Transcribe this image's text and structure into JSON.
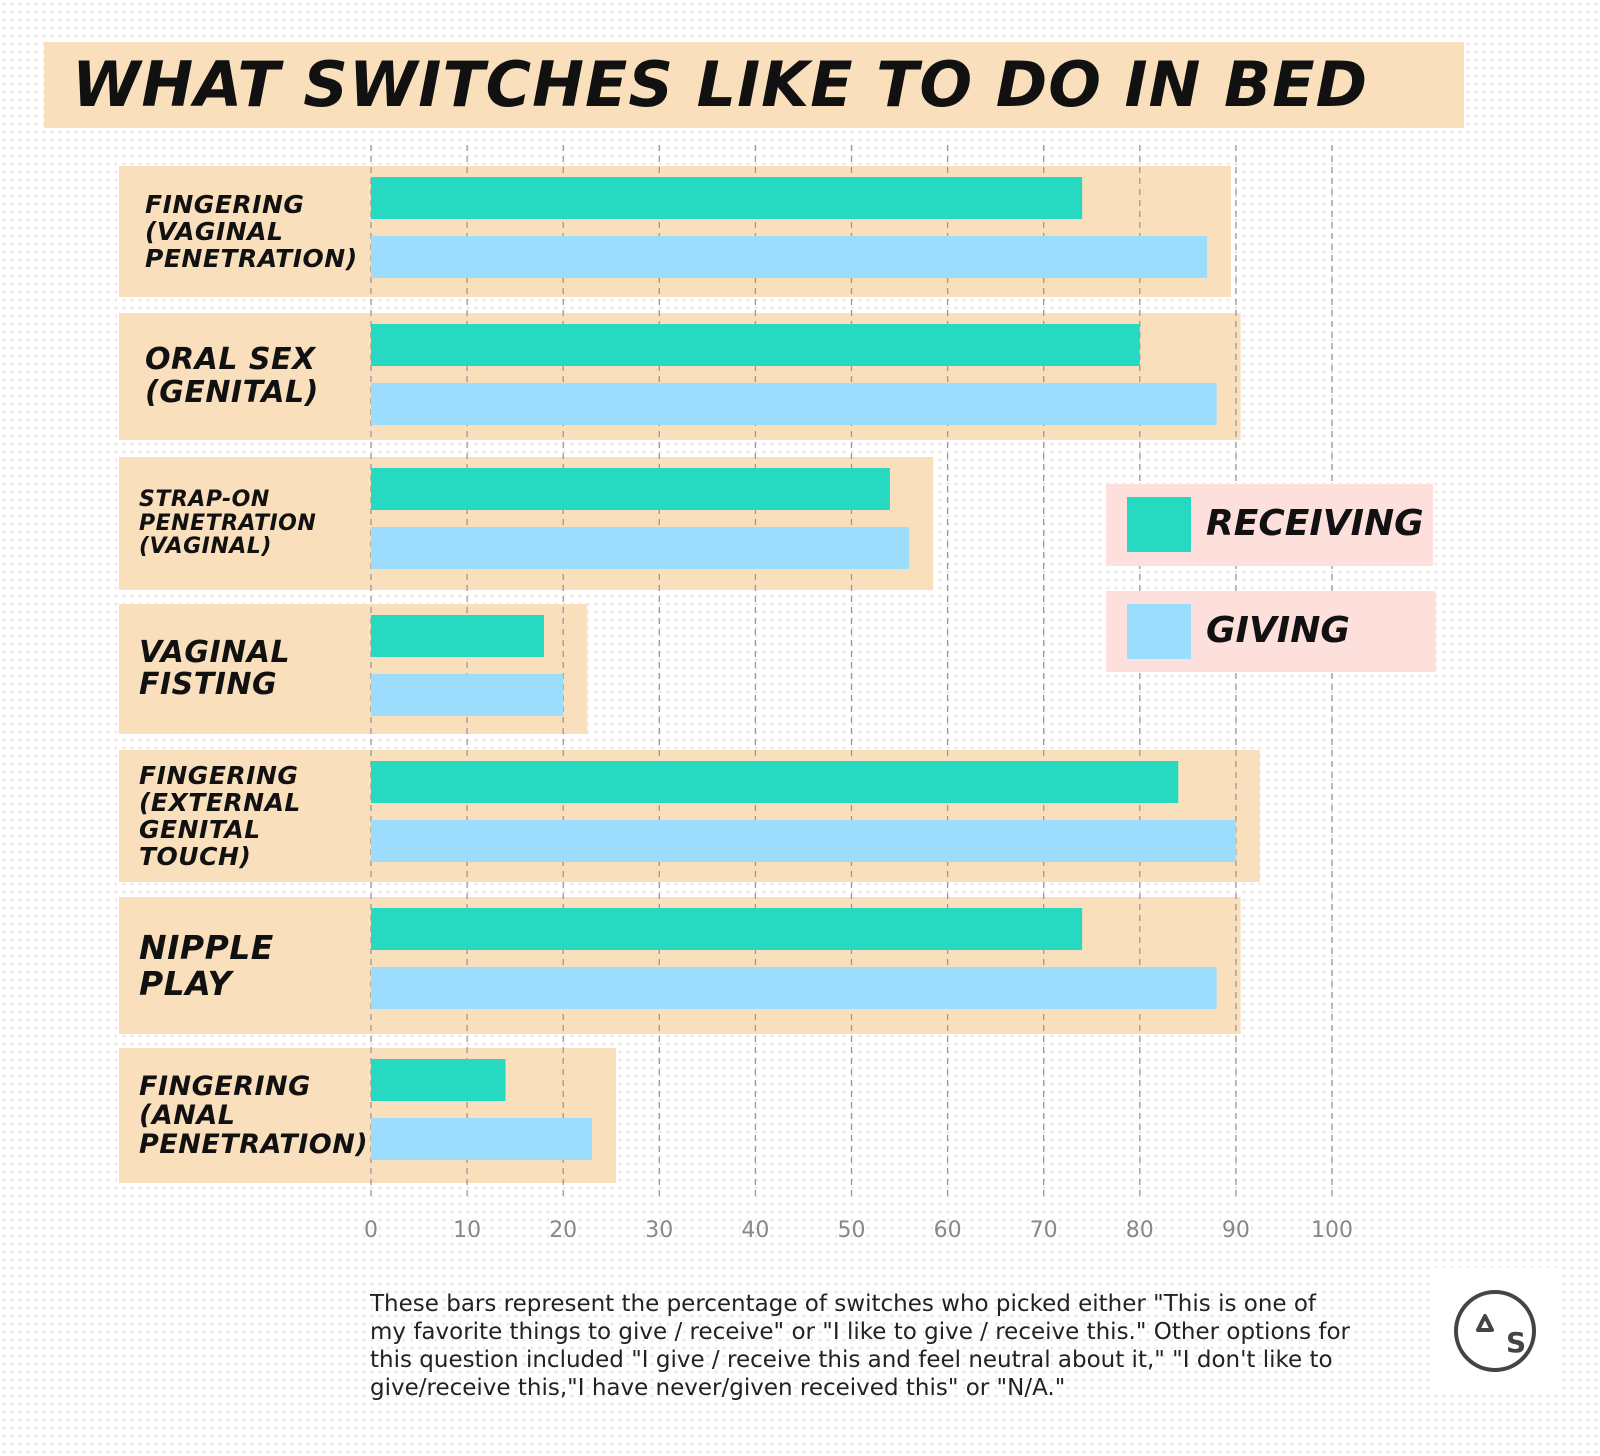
{
  "chart_data": {
    "type": "bar",
    "orientation": "horizontal",
    "title": "WHAT SWITCHES LIKE TO DO IN BED",
    "categories": [
      "FINGERING\n(VAGINAL\nPENETRATION)",
      "ORAL SEX\n(GENITAL)",
      "STRAP-ON\nPENETRATION\n(VAGINAL)",
      "VAGINAL\nFISTING",
      "FINGERING\n(EXTERNAL\nGENITAL\nTOUCH)",
      "NIPPLE\nPLAY",
      "FINGERING\n(ANAL\nPENETRATION)"
    ],
    "series": [
      {
        "name": "RECEIVING",
        "color": "#26d9c1",
        "values": [
          74,
          80,
          54,
          18,
          84,
          74,
          14
        ]
      },
      {
        "name": "GIVING",
        "color": "#9cdcfc",
        "values": [
          87,
          88,
          56,
          20,
          90,
          88,
          23
        ]
      }
    ],
    "xlim": [
      0,
      100
    ],
    "xticks": [
      "0",
      "10",
      "20",
      "30",
      "40",
      "50",
      "60",
      "70",
      "80",
      "90",
      "100"
    ],
    "grid": true,
    "legend_position": "right",
    "colors": {
      "band": "#f9dfbb",
      "legend_band": "#fde0dc",
      "grid": "#999999"
    }
  },
  "footnote": "These bars represent the percentage of switches who picked either \"This is one of my favorite things to give / receive\" or \"I like to give / receive this.\" Other options for this question included \"I give / receive this and feel neutral about it,\" \"I don't like to give/receive this,\"I have never/given received this\" or \"N/A.\"",
  "logo": {
    "icon": "autostraddle-logo-icon",
    "letter": "S"
  }
}
